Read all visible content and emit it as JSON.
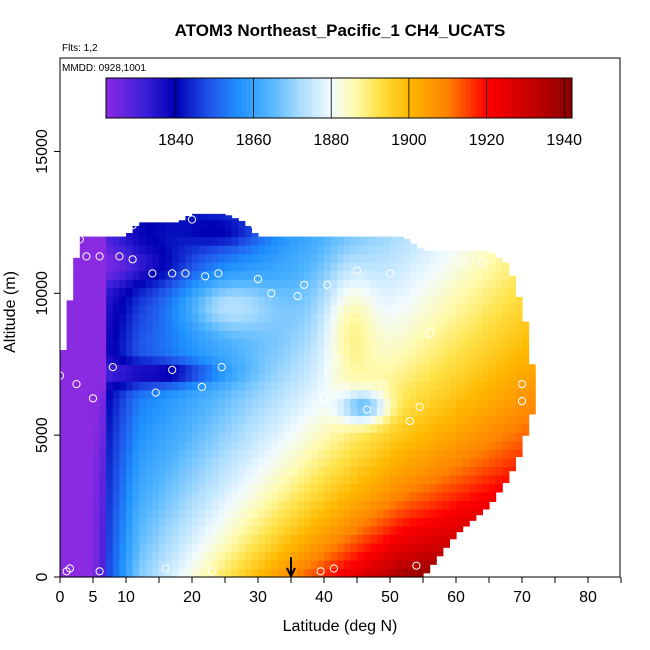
{
  "chart_data": {
    "type": "heatmap",
    "title": "ATOM3 Northeast_Pacific_1 CH4_UCATS",
    "flights_label": "Flts: 1,2",
    "dates_label": "MMDD: 0928,1001",
    "xlabel": "Latitude (deg N)",
    "ylabel": "Altitude (m)",
    "xlim": [
      0,
      85
    ],
    "ylim": [
      0,
      18000
    ],
    "x_ticks": [
      0,
      5,
      10,
      20,
      30,
      40,
      50,
      60,
      70,
      80
    ],
    "x_minor_ticks": [
      15,
      25,
      35,
      45,
      55,
      65,
      75,
      85
    ],
    "y_ticks": [
      0,
      5000,
      10000,
      15000
    ],
    "colorbar": {
      "min": 1822,
      "max": 1942,
      "ticks": [
        1840,
        1860,
        1880,
        1900,
        1920,
        1940
      ],
      "stops": [
        {
          "v": 1822,
          "c": "#8a2be2"
        },
        {
          "v": 1832,
          "c": "#3a1fd8"
        },
        {
          "v": 1840,
          "c": "#0000b4"
        },
        {
          "v": 1848,
          "c": "#1f4fe6"
        },
        {
          "v": 1856,
          "c": "#1e90ff"
        },
        {
          "v": 1864,
          "c": "#4fb4ff"
        },
        {
          "v": 1872,
          "c": "#a9dcff"
        },
        {
          "v": 1880,
          "c": "#f1fbff"
        },
        {
          "v": 1886,
          "c": "#fffbb0"
        },
        {
          "v": 1892,
          "c": "#ffe34a"
        },
        {
          "v": 1900,
          "c": "#ffb800"
        },
        {
          "v": 1910,
          "c": "#ff8200"
        },
        {
          "v": 1920,
          "c": "#ff0000"
        },
        {
          "v": 1932,
          "c": "#c40000"
        },
        {
          "v": 1942,
          "c": "#8b0000"
        }
      ]
    },
    "profile_extent": {
      "lat": [
        0,
        0.5,
        1,
        2,
        3,
        5,
        8,
        10,
        12,
        15,
        18,
        20,
        22,
        25,
        28,
        30,
        35,
        40,
        43,
        45,
        50,
        52,
        55,
        60,
        65,
        68,
        70,
        71,
        72
      ],
      "top_alt": [
        7200,
        8000,
        9000,
        10500,
        12000,
        12000,
        12000,
        12000,
        12500,
        12500,
        12500,
        12800,
        12800,
        12800,
        12500,
        12000,
        12000,
        12000,
        12000,
        12000,
        12000,
        12000,
        11500,
        11500,
        11500,
        11000,
        9500,
        8500,
        6500
      ],
      "bottom_alt": [
        0,
        0,
        0,
        0,
        0,
        0,
        0,
        0,
        0,
        0,
        0,
        0,
        0,
        0,
        0,
        0,
        0,
        0,
        0,
        0,
        0,
        0,
        0,
        1500,
        2500,
        3500,
        4500,
        5500,
        6000
      ]
    },
    "observation_points": [
      {
        "lat": 0,
        "alt": 7100
      },
      {
        "lat": 1,
        "alt": 200
      },
      {
        "lat": 1.5,
        "alt": 300
      },
      {
        "lat": 2.5,
        "alt": 6800
      },
      {
        "lat": 3,
        "alt": 11900
      },
      {
        "lat": 4,
        "alt": 11300
      },
      {
        "lat": 5,
        "alt": 6300
      },
      {
        "lat": 6,
        "alt": 11300
      },
      {
        "lat": 6,
        "alt": 200
      },
      {
        "lat": 8,
        "alt": 7400
      },
      {
        "lat": 9,
        "alt": 11300
      },
      {
        "lat": 11,
        "alt": 12400
      },
      {
        "lat": 11,
        "alt": 11200
      },
      {
        "lat": 14,
        "alt": 10700
      },
      {
        "lat": 14.5,
        "alt": 6500
      },
      {
        "lat": 16,
        "alt": 300
      },
      {
        "lat": 17,
        "alt": 10700
      },
      {
        "lat": 17,
        "alt": 7300
      },
      {
        "lat": 19,
        "alt": 10700
      },
      {
        "lat": 20,
        "alt": 12600
      },
      {
        "lat": 21.5,
        "alt": 6700
      },
      {
        "lat": 22,
        "alt": 10600
      },
      {
        "lat": 23,
        "alt": 200
      },
      {
        "lat": 24,
        "alt": 10700
      },
      {
        "lat": 24.5,
        "alt": 7400
      },
      {
        "lat": 29.5,
        "alt": 12400
      },
      {
        "lat": 30,
        "alt": 10500
      },
      {
        "lat": 32,
        "alt": 10000
      },
      {
        "lat": 36,
        "alt": 9900
      },
      {
        "lat": 37,
        "alt": 10300
      },
      {
        "lat": 39.5,
        "alt": 200
      },
      {
        "lat": 40,
        "alt": 6300
      },
      {
        "lat": 40.5,
        "alt": 10300
      },
      {
        "lat": 41,
        "alt": 5600
      },
      {
        "lat": 41.5,
        "alt": 300
      },
      {
        "lat": 42,
        "alt": 7700
      },
      {
        "lat": 43,
        "alt": 6700
      },
      {
        "lat": 45,
        "alt": 10800
      },
      {
        "lat": 46.5,
        "alt": 5900
      },
      {
        "lat": 49,
        "alt": 6800
      },
      {
        "lat": 50,
        "alt": 10700
      },
      {
        "lat": 53,
        "alt": 5500
      },
      {
        "lat": 54,
        "alt": 400
      },
      {
        "lat": 54.5,
        "alt": 6000
      },
      {
        "lat": 56,
        "alt": 8600
      },
      {
        "lat": 61,
        "alt": 11100
      },
      {
        "lat": 64,
        "alt": 11100
      },
      {
        "lat": 70,
        "alt": 6800
      },
      {
        "lat": 70,
        "alt": 6200
      }
    ],
    "marker_arrow": {
      "lat": 35,
      "alt_top": 700,
      "alt_bottom": 0
    }
  }
}
